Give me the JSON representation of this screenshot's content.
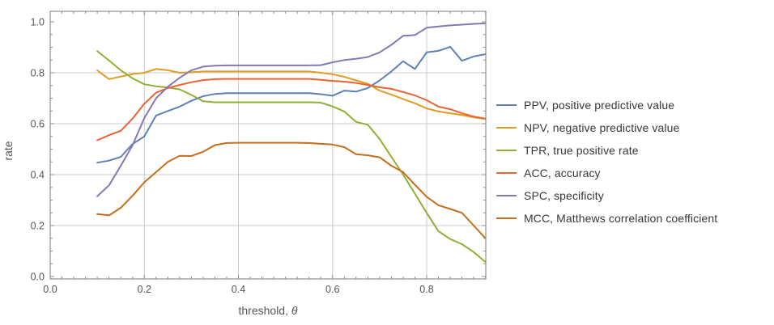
{
  "chart_data": {
    "type": "line",
    "title": "",
    "xlabel": "threshold, θ",
    "ylabel": "rate",
    "xlim": [
      0,
      0.9256
    ],
    "ylim": [
      -0.0095,
      1.0413
    ],
    "grid": "major-only",
    "legend_position": "right-outside",
    "x_major_ticks": [
      0,
      0.2,
      0.4,
      0.6,
      0.8
    ],
    "x_major_tick_labels": [
      "0.0",
      "0.2",
      "0.4",
      "0.6",
      "0.8"
    ],
    "x_minor_tick_step": 0.025,
    "y_major_ticks": [
      0,
      0.2,
      0.4,
      0.6,
      0.8,
      1.0
    ],
    "y_major_tick_labels": [
      "0.0",
      "0.2",
      "0.4",
      "0.6",
      "0.8",
      "1.0"
    ],
    "y_minor_tick_step": 0.05,
    "x_gridlines": [
      0.2,
      0.4,
      0.6,
      0.8
    ],
    "y_gridlines": [
      0.2,
      0.4,
      0.6,
      0.8
    ],
    "x": [
      0.1,
      0.125,
      0.15,
      0.175,
      0.2,
      0.225,
      0.25,
      0.275,
      0.3,
      0.325,
      0.35,
      0.375,
      0.4,
      0.425,
      0.45,
      0.475,
      0.5,
      0.525,
      0.55,
      0.575,
      0.6,
      0.625,
      0.65,
      0.675,
      0.7,
      0.725,
      0.75,
      0.775,
      0.8,
      0.825,
      0.85,
      0.875,
      0.9,
      0.925
    ],
    "series": [
      {
        "name": "PPV",
        "legend": "PPV, positive predictive value",
        "color": "#5e81b5",
        "values": [
          0.447,
          0.455,
          0.47,
          0.52,
          0.55,
          0.632,
          0.65,
          0.667,
          0.69,
          0.708,
          0.717,
          0.72,
          0.72,
          0.72,
          0.72,
          0.72,
          0.72,
          0.72,
          0.72,
          0.716,
          0.71,
          0.73,
          0.726,
          0.74,
          0.77,
          0.805,
          0.845,
          0.815,
          0.88,
          0.886,
          0.902,
          0.847,
          0.864,
          0.873
        ]
      },
      {
        "name": "NPV",
        "legend": "NPV, negative predictive value",
        "color": "#e19c24",
        "values": [
          0.81,
          0.775,
          0.785,
          0.795,
          0.8,
          0.815,
          0.81,
          0.8,
          0.802,
          0.805,
          0.805,
          0.805,
          0.805,
          0.805,
          0.805,
          0.805,
          0.805,
          0.805,
          0.805,
          0.8,
          0.794,
          0.784,
          0.77,
          0.757,
          0.73,
          0.714,
          0.697,
          0.68,
          0.66,
          0.648,
          0.641,
          0.634,
          0.625,
          0.618
        ]
      },
      {
        "name": "TPR",
        "legend": "TPR, true positive rate",
        "color": "#8fb032",
        "values": [
          0.885,
          0.848,
          0.81,
          0.778,
          0.755,
          0.747,
          0.742,
          0.735,
          0.713,
          0.688,
          0.684,
          0.684,
          0.684,
          0.684,
          0.684,
          0.684,
          0.684,
          0.684,
          0.684,
          0.683,
          0.668,
          0.648,
          0.607,
          0.596,
          0.54,
          0.47,
          0.4,
          0.325,
          0.25,
          0.178,
          0.147,
          0.127,
          0.096,
          0.057
        ]
      },
      {
        "name": "ACC",
        "legend": "ACC, accuracy",
        "color": "#eb6235",
        "values": [
          0.535,
          0.555,
          0.572,
          0.62,
          0.678,
          0.722,
          0.74,
          0.752,
          0.763,
          0.771,
          0.775,
          0.776,
          0.776,
          0.776,
          0.776,
          0.776,
          0.776,
          0.776,
          0.776,
          0.772,
          0.768,
          0.765,
          0.76,
          0.752,
          0.743,
          0.737,
          0.724,
          0.711,
          0.692,
          0.667,
          0.657,
          0.641,
          0.628,
          0.62
        ]
      },
      {
        "name": "SPC",
        "legend": "SPC, specificity",
        "color": "#8778b3",
        "values": [
          0.315,
          0.358,
          0.435,
          0.515,
          0.622,
          0.7,
          0.745,
          0.78,
          0.81,
          0.824,
          0.828,
          0.829,
          0.829,
          0.829,
          0.829,
          0.829,
          0.829,
          0.829,
          0.829,
          0.83,
          0.841,
          0.85,
          0.855,
          0.862,
          0.88,
          0.91,
          0.945,
          0.948,
          0.977,
          0.982,
          0.986,
          0.989,
          0.992,
          0.994
        ]
      },
      {
        "name": "MCC",
        "legend": "MCC, Matthews correlation coefficient",
        "color": "#c56e1a",
        "values": [
          0.245,
          0.24,
          0.27,
          0.317,
          0.37,
          0.41,
          0.45,
          0.474,
          0.473,
          0.49,
          0.516,
          0.524,
          0.525,
          0.525,
          0.525,
          0.525,
          0.525,
          0.525,
          0.524,
          0.521,
          0.518,
          0.508,
          0.48,
          0.476,
          0.468,
          0.435,
          0.41,
          0.36,
          0.313,
          0.28,
          0.265,
          0.25,
          0.2,
          0.15
        ]
      }
    ]
  },
  "colors": {
    "background": "#ffffff",
    "frame": "#8f8f8f",
    "grid": "#cccccc",
    "tick_label": "#555555",
    "axis_label": "#555555",
    "legend_text": "#383838"
  }
}
